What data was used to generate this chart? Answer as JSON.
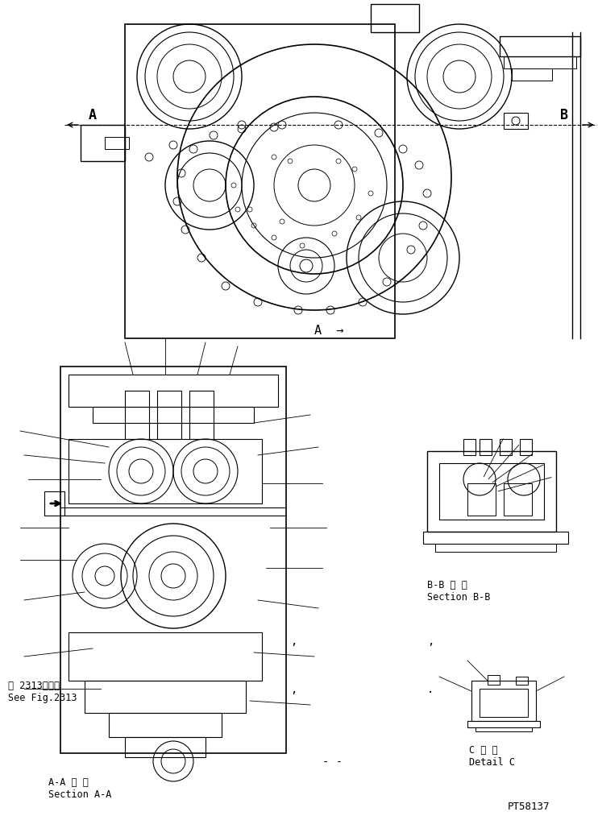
{
  "bg_color": "#ffffff",
  "line_color": "#000000",
  "title_bottom_right": "PT58137",
  "label_AA_japanese": "A-A 断 面",
  "label_AA_english": "Section A-A",
  "label_BB_japanese": "B-B 断 面",
  "label_BB_english": "Section B-B",
  "label_C_japanese": "C 詳 細",
  "label_C_english": "Detail C",
  "label_seefig": "第 2313図参照",
  "label_seefig2": "See Fig.2313",
  "label_A": "A",
  "label_B": "B",
  "arrow_A_label": "A →",
  "fig_width": 7.42,
  "fig_height": 10.13,
  "dpi": 100
}
